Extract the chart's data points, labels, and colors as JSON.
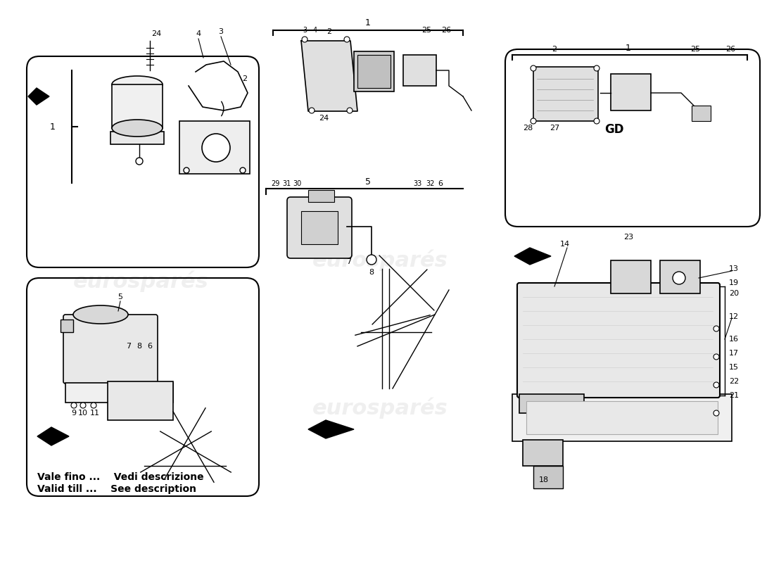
{
  "bg_color": "#ffffff",
  "bottom_text_line1": "Vale fino ...    Vedi descrizione",
  "bottom_text_line2": "Valid till ...    See description",
  "label_GD": "GD",
  "fig_width": 11.0,
  "fig_height": 8.0,
  "dpi": 100
}
